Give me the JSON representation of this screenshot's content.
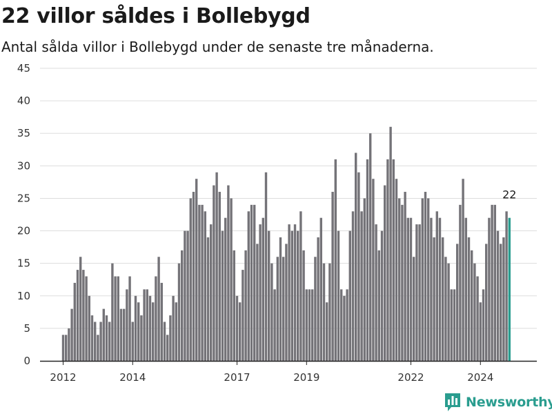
{
  "chart_data": {
    "type": "bar",
    "title": "22 villor såldes i Bollebygd",
    "subtitle": "Antal sålda villor i Bollebygd under de senaste tre månaderna.",
    "xlabel": "",
    "ylabel": "",
    "x_start": "2012-01",
    "x_ticks": [
      "2012",
      "2014",
      "2017",
      "2019",
      "2022",
      "2024"
    ],
    "y_ticks": [
      0,
      5,
      10,
      15,
      20,
      25,
      30,
      35,
      40,
      45
    ],
    "ylim": [
      0,
      45
    ],
    "grid": true,
    "highlight_label": "22",
    "colors": {
      "bar": "#747378",
      "highlight": "#2a9d8f",
      "grid": "#dddddd",
      "axis": "#222222"
    },
    "values": [
      4,
      4,
      5,
      8,
      12,
      14,
      16,
      14,
      13,
      10,
      7,
      6,
      4,
      6,
      8,
      7,
      6,
      15,
      13,
      13,
      8,
      8,
      11,
      13,
      6,
      10,
      9,
      7,
      11,
      11,
      10,
      9,
      13,
      16,
      12,
      6,
      4,
      7,
      10,
      9,
      15,
      17,
      20,
      20,
      25,
      26,
      28,
      24,
      24,
      23,
      19,
      21,
      27,
      29,
      26,
      20,
      22,
      27,
      25,
      17,
      10,
      9,
      14,
      17,
      23,
      24,
      24,
      18,
      21,
      22,
      29,
      20,
      15,
      11,
      16,
      19,
      16,
      18,
      21,
      20,
      21,
      20,
      23,
      17,
      11,
      11,
      11,
      16,
      19,
      22,
      15,
      9,
      15,
      26,
      31,
      20,
      11,
      10,
      11,
      20,
      23,
      32,
      29,
      23,
      25,
      31,
      35,
      28,
      21,
      17,
      20,
      27,
      31,
      36,
      31,
      28,
      25,
      24,
      26,
      22,
      22,
      16,
      21,
      21,
      25,
      26,
      25,
      22,
      19,
      23,
      22,
      19,
      16,
      15,
      11,
      11,
      18,
      24,
      28,
      22,
      19,
      17,
      15,
      13,
      9,
      11,
      18,
      22,
      24,
      24,
      20,
      18,
      19,
      23,
      22
    ]
  },
  "brand": {
    "name": "Newsworthy",
    "icon": "newsworthy-bar-chart-icon"
  }
}
